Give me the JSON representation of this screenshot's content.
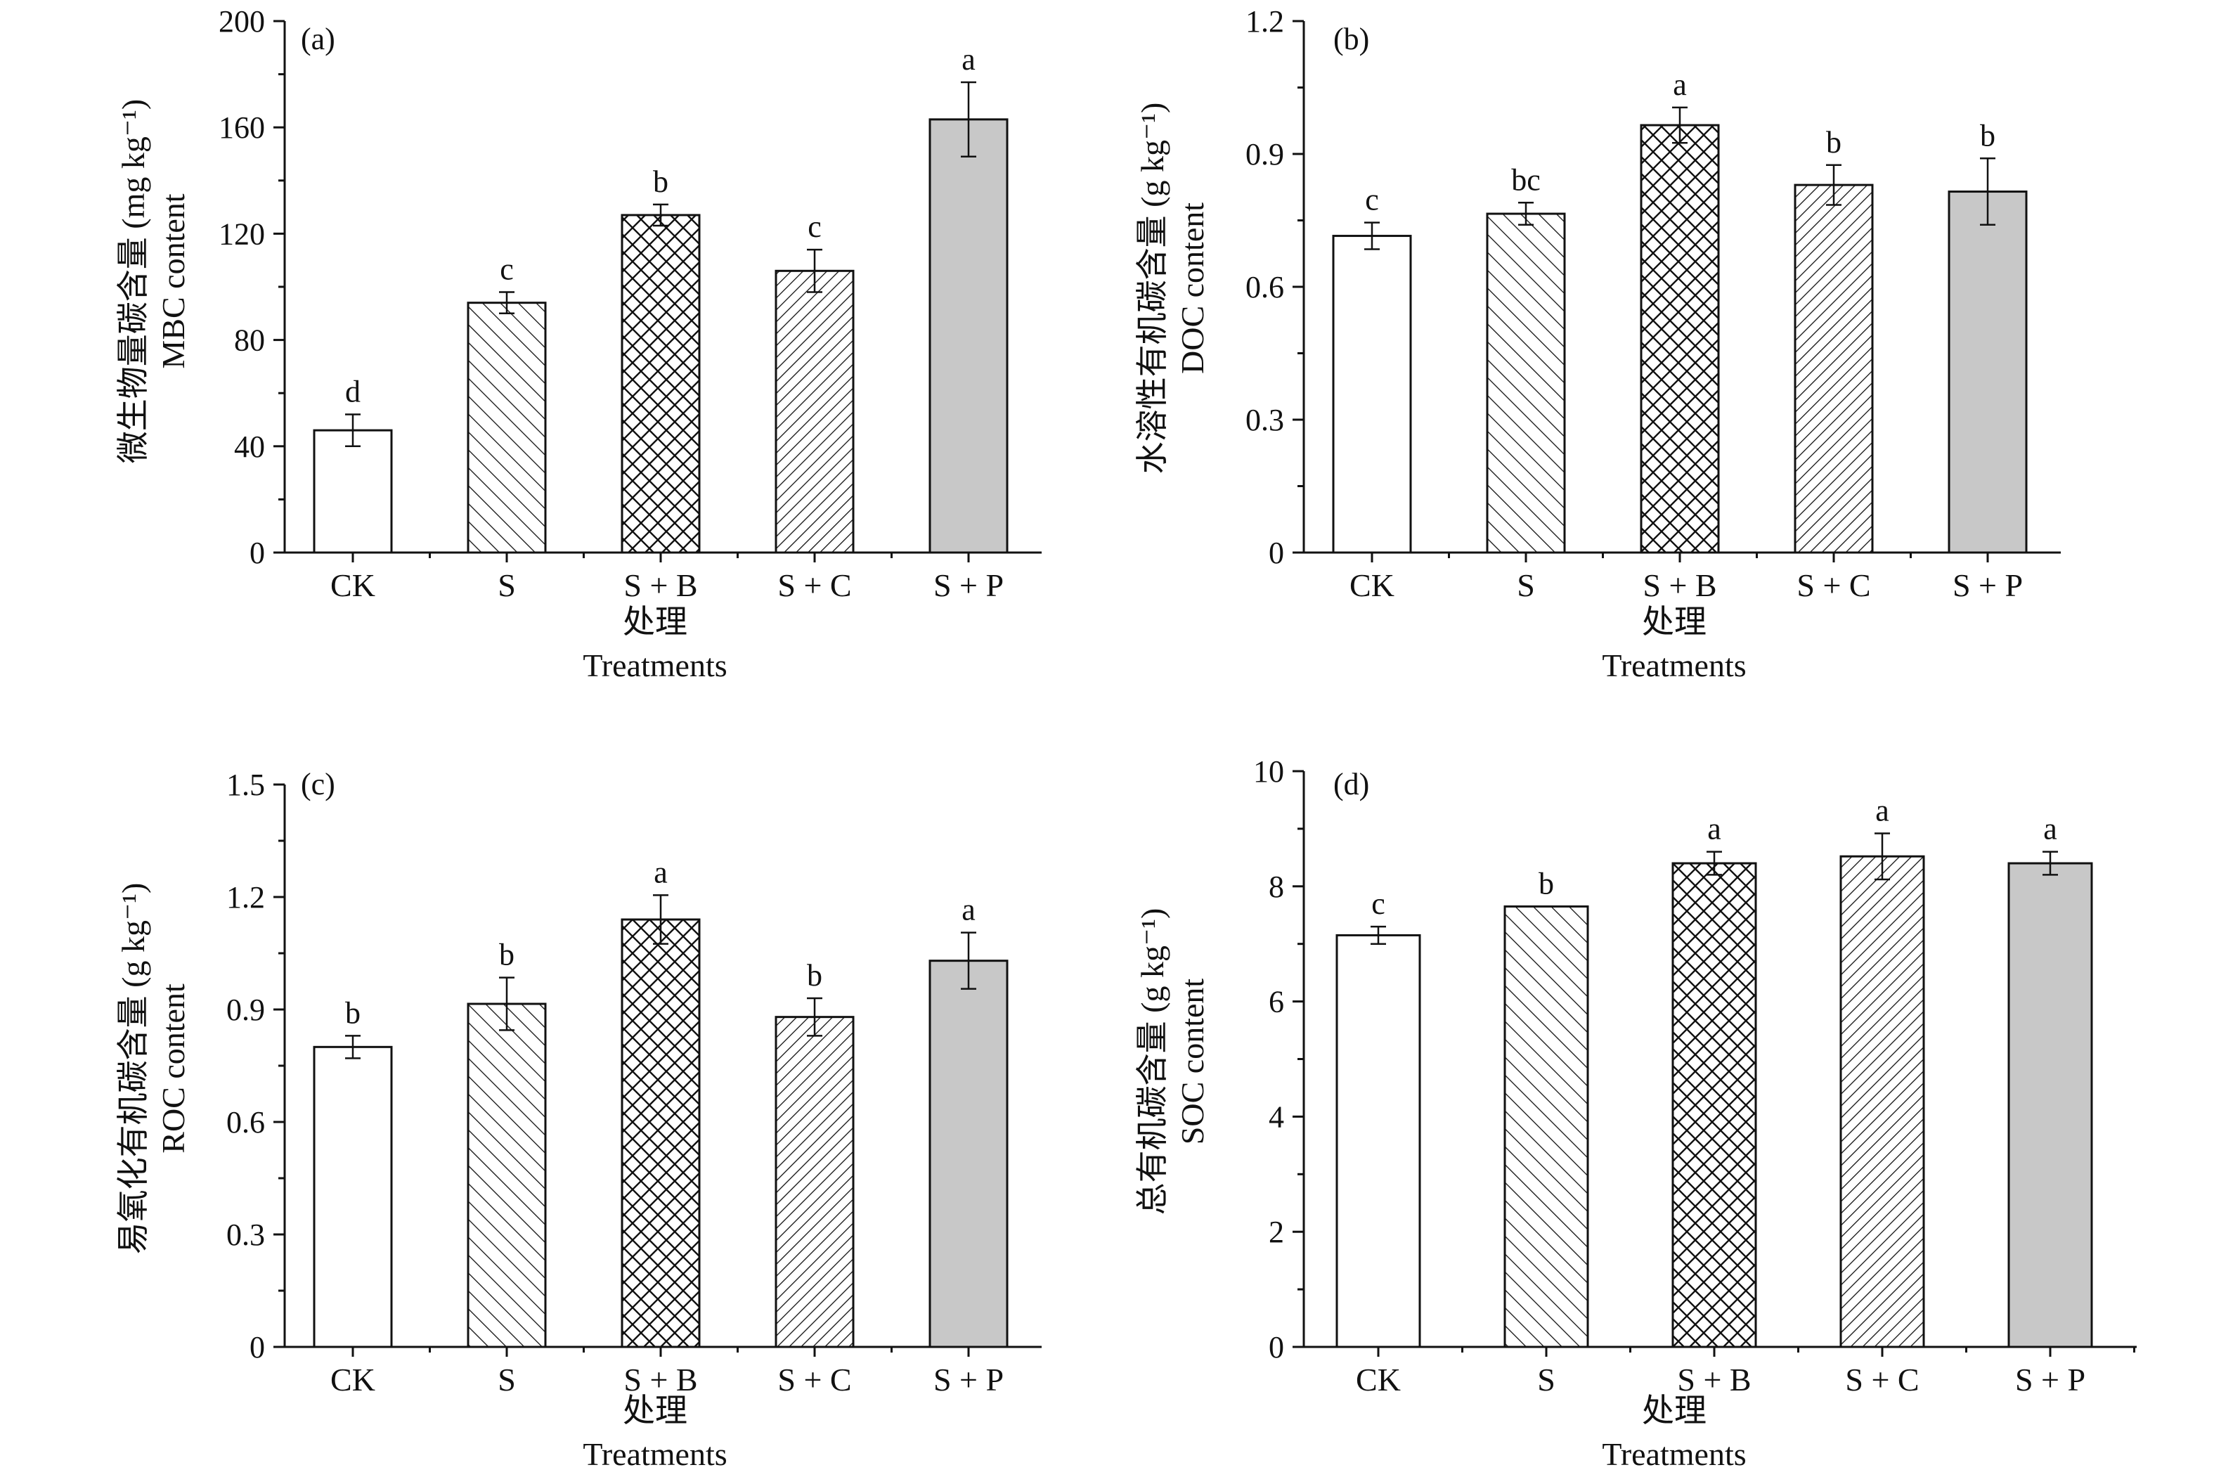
{
  "colors": {
    "axis": "#111111",
    "solid_fill": "#c8c8c8",
    "background": "#ffffff"
  },
  "chart_data": [
    {
      "type": "bar",
      "panel_label": "(a)",
      "ylabel_cn": "微生物量碳含量 (mg kg⁻¹)",
      "ylabel_en": "MBC content",
      "xlabel_cn": "处理",
      "xlabel_en": "Treatments",
      "categories": [
        "CK",
        "S",
        "S + B",
        "S + C",
        "S + P"
      ],
      "patterns": [
        "none",
        "diag-left",
        "crosshatch",
        "diag-right",
        "solid"
      ],
      "values": [
        46,
        94,
        127,
        106,
        163
      ],
      "errors": [
        6,
        4,
        4,
        8,
        14
      ],
      "significance": [
        "d",
        "c",
        "b",
        "c",
        "a"
      ],
      "ylim": [
        0,
        200
      ],
      "yticks": [
        0,
        40,
        80,
        120,
        160,
        200
      ],
      "ytick_labels": [
        "0",
        "40",
        "80",
        "120",
        "160",
        "200"
      ]
    },
    {
      "type": "bar",
      "panel_label": "(b)",
      "ylabel_cn": "水溶性有机碳含量 (g kg⁻¹)",
      "ylabel_en": "DOC content",
      "xlabel_cn": "处理",
      "xlabel_en": "Treatments",
      "categories": [
        "CK",
        "S",
        "S + B",
        "S + C",
        "S + P"
      ],
      "patterns": [
        "none",
        "diag-left",
        "crosshatch",
        "diag-right",
        "solid"
      ],
      "values": [
        0.715,
        0.765,
        0.965,
        0.83,
        0.815
      ],
      "errors": [
        0.03,
        0.025,
        0.04,
        0.045,
        0.075
      ],
      "significance": [
        "c",
        "bc",
        "a",
        "b",
        "b"
      ],
      "ylim": [
        0,
        1.2
      ],
      "yticks": [
        0,
        0.3,
        0.6,
        0.9,
        1.2
      ],
      "ytick_labels": [
        "0",
        "0.3",
        "0.6",
        "0.9",
        "1.2"
      ]
    },
    {
      "type": "bar",
      "panel_label": "(c)",
      "ylabel_cn": "易氧化有机碳含量 (g kg⁻¹)",
      "ylabel_en": "ROC content",
      "xlabel_cn": "处理",
      "xlabel_en": "Treatments",
      "categories": [
        "CK",
        "S",
        "S + B",
        "S + C",
        "S + P"
      ],
      "patterns": [
        "none",
        "diag-left",
        "crosshatch",
        "diag-right",
        "solid"
      ],
      "values": [
        0.8,
        0.915,
        1.14,
        0.88,
        1.03
      ],
      "errors": [
        0.03,
        0.07,
        0.065,
        0.05,
        0.075
      ],
      "significance": [
        "b",
        "b",
        "a",
        "b",
        "a"
      ],
      "ylim": [
        0,
        1.5
      ],
      "yticks": [
        0,
        0.3,
        0.6,
        0.9,
        1.2,
        1.5
      ],
      "ytick_labels": [
        "0",
        "0.3",
        "0.6",
        "0.9",
        "1.2",
        "1.5"
      ]
    },
    {
      "type": "bar",
      "panel_label": "(d)",
      "ylabel_cn": "总有机碳含量 (g kg⁻¹)",
      "ylabel_en": "SOC content",
      "xlabel_cn": "处理",
      "xlabel_en": "Treatments",
      "categories": [
        "CK",
        "S",
        "S + B",
        "S + C",
        "S + P"
      ],
      "patterns": [
        "none",
        "diag-left",
        "crosshatch",
        "diag-right",
        "solid"
      ],
      "values": [
        7.15,
        7.65,
        8.4,
        8.52,
        8.4
      ],
      "errors": [
        0.15,
        0,
        0.2,
        0.4,
        0.2
      ],
      "significance": [
        "c",
        "b",
        "a",
        "a",
        "a"
      ],
      "ylim": [
        0,
        10
      ],
      "yticks": [
        0,
        2,
        4,
        6,
        8,
        10
      ],
      "ytick_labels": [
        "0",
        "2",
        "4",
        "6",
        "8",
        "10"
      ]
    }
  ]
}
